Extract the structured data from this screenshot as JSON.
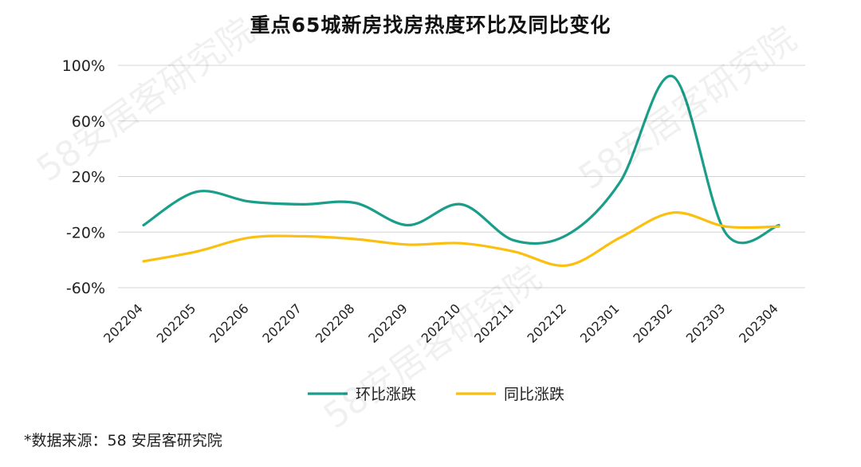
{
  "title": "重点65城新房找房热度环比及同比变化",
  "source": "*数据来源：58 安居客研究院",
  "watermark": "58安居客研究院",
  "chart_data": {
    "type": "line",
    "title": "重点65城新房找房热度环比及同比变化",
    "categories": [
      "202204",
      "202205",
      "202206",
      "202207",
      "202208",
      "202209",
      "202210",
      "202211",
      "202212",
      "202301",
      "202302",
      "202303",
      "202304"
    ],
    "y_ticks": [
      "100%",
      "60%",
      "20%",
      "-20%",
      "-60%"
    ],
    "ylim": [
      -60,
      100
    ],
    "y_unit": "%",
    "grid": true,
    "legend_position": "bottom",
    "series": [
      {
        "name": "环比涨跌",
        "color": "#1a9e8a",
        "values": [
          -15,
          9,
          2,
          0,
          1,
          -15,
          0,
          -26,
          -22,
          16,
          92,
          -21,
          -15
        ]
      },
      {
        "name": "同比涨跌",
        "color": "#fbbf0f",
        "values": [
          -41,
          -34,
          -24,
          -23,
          -25,
          -29,
          -28,
          -34,
          -44,
          -24,
          -6,
          -16,
          -16
        ]
      }
    ]
  }
}
